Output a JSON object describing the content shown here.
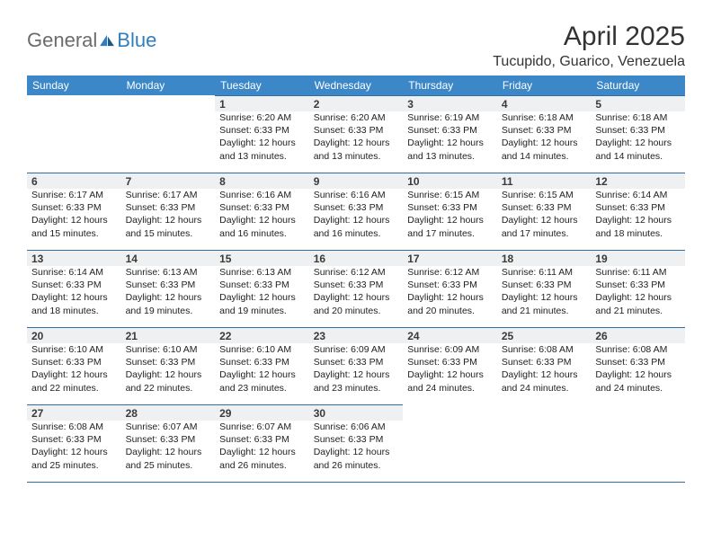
{
  "brand": {
    "part1": "General",
    "part2": "Blue"
  },
  "title": "April 2025",
  "location": "Tucupido, Guarico, Venezuela",
  "header_bg": "#3b87c8",
  "header_fg": "#ffffff",
  "rule_color": "#2f6ea5",
  "daynum_bg": "#eef0f2",
  "text_color": "#333333",
  "page_bg": "#ffffff",
  "font_family": "Arial, Helvetica, sans-serif",
  "title_fontsize": 30,
  "location_fontsize": 16,
  "dayhead_fontsize": 12,
  "body_fontsize": 10.5,
  "columns": [
    "Sunday",
    "Monday",
    "Tuesday",
    "Wednesday",
    "Thursday",
    "Friday",
    "Saturday"
  ],
  "weeks": [
    [
      null,
      null,
      {
        "n": "1",
        "sr": "Sunrise: 6:20 AM",
        "ss": "Sunset: 6:33 PM",
        "d1": "Daylight: 12 hours",
        "d2": "and 13 minutes."
      },
      {
        "n": "2",
        "sr": "Sunrise: 6:20 AM",
        "ss": "Sunset: 6:33 PM",
        "d1": "Daylight: 12 hours",
        "d2": "and 13 minutes."
      },
      {
        "n": "3",
        "sr": "Sunrise: 6:19 AM",
        "ss": "Sunset: 6:33 PM",
        "d1": "Daylight: 12 hours",
        "d2": "and 13 minutes."
      },
      {
        "n": "4",
        "sr": "Sunrise: 6:18 AM",
        "ss": "Sunset: 6:33 PM",
        "d1": "Daylight: 12 hours",
        "d2": "and 14 minutes."
      },
      {
        "n": "5",
        "sr": "Sunrise: 6:18 AM",
        "ss": "Sunset: 6:33 PM",
        "d1": "Daylight: 12 hours",
        "d2": "and 14 minutes."
      }
    ],
    [
      {
        "n": "6",
        "sr": "Sunrise: 6:17 AM",
        "ss": "Sunset: 6:33 PM",
        "d1": "Daylight: 12 hours",
        "d2": "and 15 minutes."
      },
      {
        "n": "7",
        "sr": "Sunrise: 6:17 AM",
        "ss": "Sunset: 6:33 PM",
        "d1": "Daylight: 12 hours",
        "d2": "and 15 minutes."
      },
      {
        "n": "8",
        "sr": "Sunrise: 6:16 AM",
        "ss": "Sunset: 6:33 PM",
        "d1": "Daylight: 12 hours",
        "d2": "and 16 minutes."
      },
      {
        "n": "9",
        "sr": "Sunrise: 6:16 AM",
        "ss": "Sunset: 6:33 PM",
        "d1": "Daylight: 12 hours",
        "d2": "and 16 minutes."
      },
      {
        "n": "10",
        "sr": "Sunrise: 6:15 AM",
        "ss": "Sunset: 6:33 PM",
        "d1": "Daylight: 12 hours",
        "d2": "and 17 minutes."
      },
      {
        "n": "11",
        "sr": "Sunrise: 6:15 AM",
        "ss": "Sunset: 6:33 PM",
        "d1": "Daylight: 12 hours",
        "d2": "and 17 minutes."
      },
      {
        "n": "12",
        "sr": "Sunrise: 6:14 AM",
        "ss": "Sunset: 6:33 PM",
        "d1": "Daylight: 12 hours",
        "d2": "and 18 minutes."
      }
    ],
    [
      {
        "n": "13",
        "sr": "Sunrise: 6:14 AM",
        "ss": "Sunset: 6:33 PM",
        "d1": "Daylight: 12 hours",
        "d2": "and 18 minutes."
      },
      {
        "n": "14",
        "sr": "Sunrise: 6:13 AM",
        "ss": "Sunset: 6:33 PM",
        "d1": "Daylight: 12 hours",
        "d2": "and 19 minutes."
      },
      {
        "n": "15",
        "sr": "Sunrise: 6:13 AM",
        "ss": "Sunset: 6:33 PM",
        "d1": "Daylight: 12 hours",
        "d2": "and 19 minutes."
      },
      {
        "n": "16",
        "sr": "Sunrise: 6:12 AM",
        "ss": "Sunset: 6:33 PM",
        "d1": "Daylight: 12 hours",
        "d2": "and 20 minutes."
      },
      {
        "n": "17",
        "sr": "Sunrise: 6:12 AM",
        "ss": "Sunset: 6:33 PM",
        "d1": "Daylight: 12 hours",
        "d2": "and 20 minutes."
      },
      {
        "n": "18",
        "sr": "Sunrise: 6:11 AM",
        "ss": "Sunset: 6:33 PM",
        "d1": "Daylight: 12 hours",
        "d2": "and 21 minutes."
      },
      {
        "n": "19",
        "sr": "Sunrise: 6:11 AM",
        "ss": "Sunset: 6:33 PM",
        "d1": "Daylight: 12 hours",
        "d2": "and 21 minutes."
      }
    ],
    [
      {
        "n": "20",
        "sr": "Sunrise: 6:10 AM",
        "ss": "Sunset: 6:33 PM",
        "d1": "Daylight: 12 hours",
        "d2": "and 22 minutes."
      },
      {
        "n": "21",
        "sr": "Sunrise: 6:10 AM",
        "ss": "Sunset: 6:33 PM",
        "d1": "Daylight: 12 hours",
        "d2": "and 22 minutes."
      },
      {
        "n": "22",
        "sr": "Sunrise: 6:10 AM",
        "ss": "Sunset: 6:33 PM",
        "d1": "Daylight: 12 hours",
        "d2": "and 23 minutes."
      },
      {
        "n": "23",
        "sr": "Sunrise: 6:09 AM",
        "ss": "Sunset: 6:33 PM",
        "d1": "Daylight: 12 hours",
        "d2": "and 23 minutes."
      },
      {
        "n": "24",
        "sr": "Sunrise: 6:09 AM",
        "ss": "Sunset: 6:33 PM",
        "d1": "Daylight: 12 hours",
        "d2": "and 24 minutes."
      },
      {
        "n": "25",
        "sr": "Sunrise: 6:08 AM",
        "ss": "Sunset: 6:33 PM",
        "d1": "Daylight: 12 hours",
        "d2": "and 24 minutes."
      },
      {
        "n": "26",
        "sr": "Sunrise: 6:08 AM",
        "ss": "Sunset: 6:33 PM",
        "d1": "Daylight: 12 hours",
        "d2": "and 24 minutes."
      }
    ],
    [
      {
        "n": "27",
        "sr": "Sunrise: 6:08 AM",
        "ss": "Sunset: 6:33 PM",
        "d1": "Daylight: 12 hours",
        "d2": "and 25 minutes."
      },
      {
        "n": "28",
        "sr": "Sunrise: 6:07 AM",
        "ss": "Sunset: 6:33 PM",
        "d1": "Daylight: 12 hours",
        "d2": "and 25 minutes."
      },
      {
        "n": "29",
        "sr": "Sunrise: 6:07 AM",
        "ss": "Sunset: 6:33 PM",
        "d1": "Daylight: 12 hours",
        "d2": "and 26 minutes."
      },
      {
        "n": "30",
        "sr": "Sunrise: 6:06 AM",
        "ss": "Sunset: 6:33 PM",
        "d1": "Daylight: 12 hours",
        "d2": "and 26 minutes."
      },
      null,
      null,
      null
    ]
  ]
}
